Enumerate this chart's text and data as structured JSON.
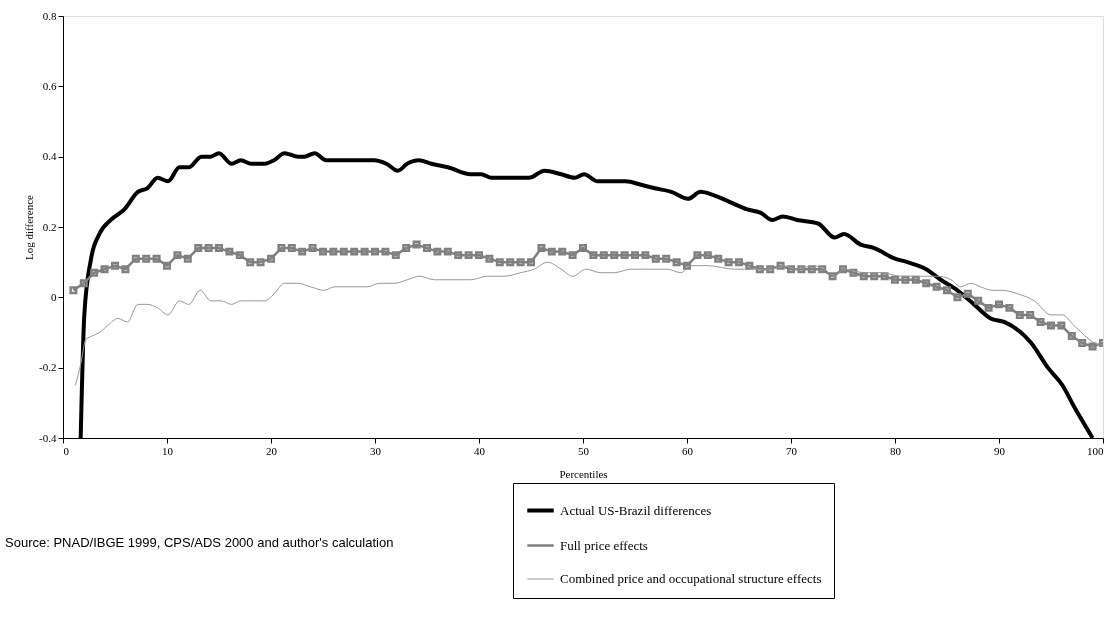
{
  "chart_data": {
    "type": "line",
    "xlabel": "Percentiles",
    "ylabel": "Log difference",
    "xlim": [
      0,
      100
    ],
    "xticks": [
      0,
      10,
      20,
      30,
      40,
      50,
      60,
      70,
      80,
      90,
      100
    ],
    "ylim": [
      -0.4,
      0.8
    ],
    "yticks": [
      -0.4,
      -0.2,
      0,
      0.2,
      0.4,
      0.6,
      0.8
    ],
    "grid": false,
    "legend": "bottom right",
    "annotations": [
      "Source: PNAD/IBGE 1999, CPS/ADS 2000 and author's calculation"
    ],
    "series": [
      {
        "name": "Actual US-Brazil differences",
        "color": "#000000",
        "marker": "none",
        "x": [
          1.7,
          2.05,
          2.7,
          3.5,
          4.6,
          5.9,
          7.2,
          8.1,
          9.1,
          10.1,
          11.2,
          12.1,
          13.3,
          14.2,
          15.0,
          16.2,
          17.1,
          18.1,
          19.4,
          20.3,
          21.3,
          22.6,
          23.2,
          24.2,
          25.3,
          26.7,
          28.0,
          29.0,
          29.9,
          31.1,
          32.2,
          33.1,
          34.2,
          35.4,
          37.0,
          39.2,
          40.2,
          41.2,
          42.5,
          43.7,
          44.8,
          46.3,
          47.9,
          49.2,
          50.1,
          51.4,
          53.3,
          54.1,
          55.6,
          56.9,
          58.5,
          60.1,
          61.3,
          62.6,
          64.2,
          65.8,
          67.1,
          68.2,
          69.2,
          70.6,
          72.6,
          74.2,
          75.1,
          76.7,
          78.0,
          80.0,
          81.2,
          83.0,
          84.4,
          86.0,
          87.6,
          89.2,
          90.5,
          93.1,
          94.7,
          96.1,
          97.2,
          99.0
        ],
        "values": [
          -0.4,
          -0.05,
          0.11,
          0.18,
          0.22,
          0.25,
          0.3,
          0.31,
          0.34,
          0.33,
          0.37,
          0.37,
          0.4,
          0.4,
          0.41,
          0.38,
          0.39,
          0.38,
          0.38,
          0.39,
          0.41,
          0.4,
          0.4,
          0.41,
          0.39,
          0.39,
          0.39,
          0.39,
          0.39,
          0.38,
          0.36,
          0.38,
          0.39,
          0.38,
          0.37,
          0.35,
          0.35,
          0.34,
          0.34,
          0.34,
          0.34,
          0.36,
          0.35,
          0.34,
          0.35,
          0.33,
          0.33,
          0.33,
          0.32,
          0.31,
          0.3,
          0.28,
          0.3,
          0.29,
          0.27,
          0.25,
          0.24,
          0.22,
          0.23,
          0.22,
          0.21,
          0.17,
          0.18,
          0.15,
          0.14,
          0.11,
          0.1,
          0.08,
          0.05,
          0.02,
          -0.02,
          -0.06,
          -0.07,
          -0.13,
          -0.2,
          -0.25,
          -0.31,
          -0.4
        ]
      },
      {
        "name": "Full price effects",
        "color": "#808080",
        "marker": "square",
        "x": [
          1,
          2,
          3,
          4,
          5,
          6,
          7,
          8,
          9,
          10,
          11,
          12,
          13,
          14,
          15,
          16,
          17,
          18,
          19,
          20,
          21,
          22,
          23,
          24,
          25,
          26,
          27,
          28,
          29,
          30,
          31,
          32,
          33,
          34,
          35,
          36,
          37,
          38,
          39,
          40,
          41,
          42,
          43,
          44,
          45,
          46,
          47,
          48,
          49,
          50,
          51,
          52,
          53,
          54,
          55,
          56,
          57,
          58,
          59,
          60,
          61,
          62,
          63,
          64,
          65,
          66,
          67,
          68,
          69,
          70,
          71,
          72,
          73,
          74,
          75,
          76,
          77,
          78,
          79,
          80,
          81,
          82,
          83,
          84,
          85,
          86,
          87,
          88,
          89,
          90,
          91,
          92,
          93,
          94,
          95,
          96,
          97,
          98,
          99,
          100
        ],
        "values": [
          0.02,
          0.04,
          0.07,
          0.08,
          0.09,
          0.08,
          0.11,
          0.11,
          0.11,
          0.09,
          0.12,
          0.11,
          0.14,
          0.14,
          0.14,
          0.13,
          0.12,
          0.1,
          0.1,
          0.11,
          0.14,
          0.14,
          0.13,
          0.14,
          0.13,
          0.13,
          0.13,
          0.13,
          0.13,
          0.13,
          0.13,
          0.12,
          0.14,
          0.15,
          0.14,
          0.13,
          0.13,
          0.12,
          0.12,
          0.12,
          0.11,
          0.1,
          0.1,
          0.1,
          0.1,
          0.14,
          0.13,
          0.13,
          0.12,
          0.14,
          0.12,
          0.12,
          0.12,
          0.12,
          0.12,
          0.12,
          0.11,
          0.11,
          0.1,
          0.09,
          0.12,
          0.12,
          0.11,
          0.1,
          0.1,
          0.09,
          0.08,
          0.08,
          0.09,
          0.08,
          0.08,
          0.08,
          0.08,
          0.06,
          0.08,
          0.07,
          0.06,
          0.06,
          0.06,
          0.05,
          0.05,
          0.05,
          0.04,
          0.03,
          0.02,
          0.0,
          0.01,
          -0.01,
          -0.03,
          -0.02,
          -0.03,
          -0.05,
          -0.05,
          -0.07,
          -0.08,
          -0.08,
          -0.11,
          -0.13,
          -0.14,
          -0.13
        ]
      },
      {
        "name": "Combined price and occupational structure effects",
        "color": "#999999",
        "marker": "none",
        "x": [
          1.2,
          1.7,
          2.2,
          2.8,
          3.5,
          4.3,
          5.3,
          6.2,
          7.2,
          8.1,
          9.1,
          10.1,
          11.2,
          12.1,
          13.2,
          14.2,
          15.2,
          16.2,
          17.1,
          18.4,
          19.4,
          20.3,
          21.3,
          22.6,
          23.8,
          25.1,
          26.1,
          28.0,
          29.3,
          30.4,
          31.9,
          33.1,
          34.3,
          35.7,
          37.3,
          39.2,
          40.8,
          42.4,
          44.0,
          45.3,
          46.6,
          47.9,
          49.0,
          50.3,
          51.7,
          53.0,
          54.6,
          56.2,
          58.1,
          59.4,
          60.4,
          62.0,
          64.6,
          66.1,
          68.1,
          69.2,
          70.6,
          72.1,
          73.2,
          74.2,
          75.1,
          77.1,
          78.7,
          80.6,
          82.5,
          84.1,
          85.4,
          86.3,
          87.3,
          88.2,
          89.4,
          90.3,
          91.8,
          93.4,
          95.0,
          96.1,
          97.2,
          99.2,
          100.0
        ],
        "values": [
          -0.25,
          -0.19,
          -0.12,
          -0.11,
          -0.1,
          -0.08,
          -0.06,
          -0.07,
          -0.02,
          -0.02,
          -0.03,
          -0.05,
          -0.01,
          -0.02,
          0.02,
          -0.01,
          -0.01,
          -0.02,
          -0.01,
          -0.01,
          -0.01,
          0.01,
          0.04,
          0.04,
          0.03,
          0.02,
          0.03,
          0.03,
          0.03,
          0.04,
          0.04,
          0.05,
          0.06,
          0.05,
          0.05,
          0.05,
          0.06,
          0.06,
          0.07,
          0.08,
          0.1,
          0.08,
          0.06,
          0.08,
          0.07,
          0.07,
          0.08,
          0.08,
          0.08,
          0.07,
          0.09,
          0.09,
          0.08,
          0.08,
          0.08,
          0.09,
          0.08,
          0.09,
          0.08,
          0.06,
          0.08,
          0.07,
          0.07,
          0.06,
          0.06,
          0.06,
          0.05,
          0.03,
          0.04,
          0.03,
          0.02,
          0.02,
          0.01,
          -0.01,
          -0.05,
          -0.05,
          -0.08,
          -0.13,
          -0.14
        ]
      }
    ]
  }
}
